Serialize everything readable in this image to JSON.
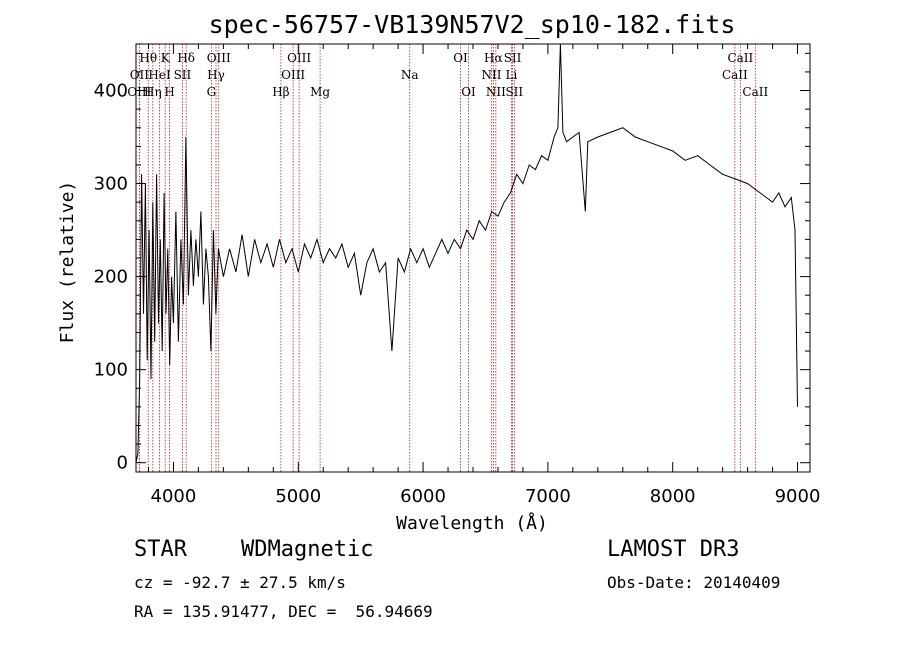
{
  "chart_data": {
    "type": "line",
    "title": "spec-56757-VB139N57V2_sp10-182.fits",
    "xlabel": "Wavelength (Å)",
    "ylabel": "Flux (relative)",
    "xlim": [
      3700,
      9100
    ],
    "ylim": [
      -10,
      450
    ],
    "x_ticks": [
      4000,
      5000,
      6000,
      7000,
      8000,
      9000
    ],
    "y_ticks": [
      0,
      100,
      200,
      300,
      400
    ],
    "line_color": "#000000",
    "marker_color": "#b22222",
    "series": [
      {
        "name": "spectrum",
        "points": [
          [
            3700,
            0
          ],
          [
            3715,
            10
          ],
          [
            3730,
            90
          ],
          [
            3745,
            310
          ],
          [
            3760,
            160
          ],
          [
            3775,
            300
          ],
          [
            3790,
            110
          ],
          [
            3805,
            250
          ],
          [
            3820,
            90
          ],
          [
            3835,
            280
          ],
          [
            3850,
            130
          ],
          [
            3865,
            310
          ],
          [
            3880,
            150
          ],
          [
            3895,
            240
          ],
          [
            3910,
            120
          ],
          [
            3925,
            290
          ],
          [
            3940,
            160
          ],
          [
            3955,
            230
          ],
          [
            3970,
            105
          ],
          [
            3985,
            200
          ],
          [
            4000,
            150
          ],
          [
            4020,
            270
          ],
          [
            4040,
            130
          ],
          [
            4060,
            240
          ],
          [
            4080,
            170
          ],
          [
            4100,
            350
          ],
          [
            4120,
            180
          ],
          [
            4140,
            250
          ],
          [
            4160,
            190
          ],
          [
            4180,
            240
          ],
          [
            4200,
            200
          ],
          [
            4220,
            270
          ],
          [
            4240,
            170
          ],
          [
            4260,
            230
          ],
          [
            4280,
            200
          ],
          [
            4300,
            120
          ],
          [
            4320,
            250
          ],
          [
            4340,
            160
          ],
          [
            4360,
            230
          ],
          [
            4400,
            200
          ],
          [
            4450,
            230
          ],
          [
            4500,
            205
          ],
          [
            4550,
            245
          ],
          [
            4600,
            200
          ],
          [
            4650,
            240
          ],
          [
            4700,
            215
          ],
          [
            4750,
            235
          ],
          [
            4800,
            210
          ],
          [
            4850,
            240
          ],
          [
            4900,
            215
          ],
          [
            4950,
            230
          ],
          [
            5000,
            205
          ],
          [
            5050,
            235
          ],
          [
            5100,
            220
          ],
          [
            5150,
            240
          ],
          [
            5200,
            215
          ],
          [
            5250,
            230
          ],
          [
            5300,
            220
          ],
          [
            5350,
            235
          ],
          [
            5400,
            210
          ],
          [
            5450,
            225
          ],
          [
            5500,
            180
          ],
          [
            5550,
            215
          ],
          [
            5600,
            230
          ],
          [
            5650,
            205
          ],
          [
            5700,
            215
          ],
          [
            5750,
            120
          ],
          [
            5800,
            220
          ],
          [
            5850,
            205
          ],
          [
            5900,
            230
          ],
          [
            5950,
            215
          ],
          [
            6000,
            230
          ],
          [
            6050,
            210
          ],
          [
            6100,
            225
          ],
          [
            6150,
            240
          ],
          [
            6200,
            225
          ],
          [
            6250,
            240
          ],
          [
            6300,
            230
          ],
          [
            6350,
            250
          ],
          [
            6400,
            240
          ],
          [
            6450,
            260
          ],
          [
            6500,
            250
          ],
          [
            6550,
            270
          ],
          [
            6600,
            265
          ],
          [
            6650,
            280
          ],
          [
            6700,
            290
          ],
          [
            6750,
            310
          ],
          [
            6800,
            300
          ],
          [
            6850,
            320
          ],
          [
            6900,
            315
          ],
          [
            6950,
            330
          ],
          [
            7000,
            325
          ],
          [
            7050,
            350
          ],
          [
            7080,
            360
          ],
          [
            7100,
            450
          ],
          [
            7120,
            355
          ],
          [
            7150,
            345
          ],
          [
            7200,
            350
          ],
          [
            7250,
            355
          ],
          [
            7300,
            270
          ],
          [
            7320,
            345
          ],
          [
            7400,
            350
          ],
          [
            7500,
            355
          ],
          [
            7600,
            360
          ],
          [
            7700,
            350
          ],
          [
            7800,
            345
          ],
          [
            7900,
            340
          ],
          [
            8000,
            335
          ],
          [
            8100,
            325
          ],
          [
            8200,
            330
          ],
          [
            8300,
            320
          ],
          [
            8400,
            310
          ],
          [
            8500,
            305
          ],
          [
            8600,
            300
          ],
          [
            8700,
            290
          ],
          [
            8800,
            280
          ],
          [
            8850,
            290
          ],
          [
            8900,
            275
          ],
          [
            8950,
            285
          ],
          [
            8980,
            250
          ],
          [
            9000,
            60
          ]
        ]
      }
    ],
    "spectral_lines": [
      {
        "label": "Hθ",
        "wavelength": 3798,
        "row": 1
      },
      {
        "label": "K",
        "wavelength": 3934,
        "row": 1
      },
      {
        "label": "Hδ",
        "wavelength": 4102,
        "row": 1
      },
      {
        "label": "OIII",
        "wavelength": 4363,
        "row": 1
      },
      {
        "label": "OIII",
        "wavelength": 5007,
        "row": 1
      },
      {
        "label": "OI",
        "wavelength": 6300,
        "row": 1
      },
      {
        "label": "Hα",
        "wavelength": 6563,
        "row": 1
      },
      {
        "label": "SII",
        "wavelength": 6717,
        "row": 1
      },
      {
        "label": "CaII",
        "wavelength": 8542,
        "row": 1
      },
      {
        "label": "OII",
        "wavelength": 3727,
        "row": 2
      },
      {
        "label": "HeI",
        "wavelength": 3889,
        "row": 2
      },
      {
        "label": "SII",
        "wavelength": 4072,
        "row": 2
      },
      {
        "label": "Hγ",
        "wavelength": 4341,
        "row": 2
      },
      {
        "label": "OIII",
        "wavelength": 4959,
        "row": 2
      },
      {
        "label": "Na",
        "wavelength": 5893,
        "row": 2
      },
      {
        "label": "NII",
        "wavelength": 6548,
        "row": 2
      },
      {
        "label": "Li",
        "wavelength": 6708,
        "row": 2
      },
      {
        "label": "CaII",
        "wavelength": 8498,
        "row": 2
      },
      {
        "label": "OIII",
        "wavelength": 3727,
        "row": 3
      },
      {
        "label": "Hη",
        "wavelength": 3835,
        "row": 3
      },
      {
        "label": "H",
        "wavelength": 3969,
        "row": 3
      },
      {
        "label": "G",
        "wavelength": 4304,
        "row": 3
      },
      {
        "label": "Hβ",
        "wavelength": 4861,
        "row": 3
      },
      {
        "label": "Mg",
        "wavelength": 5175,
        "row": 3
      },
      {
        "label": "OI",
        "wavelength": 6364,
        "row": 3
      },
      {
        "label": "NII",
        "wavelength": 6583,
        "row": 3
      },
      {
        "label": "SII",
        "wavelength": 6731,
        "row": 3
      },
      {
        "label": "CaII",
        "wavelength": 8662,
        "row": 3
      }
    ]
  },
  "info": {
    "object_class": "STAR",
    "subclass": "WDMagnetic",
    "survey": "LAMOST DR3",
    "redshift": "cz = -92.7 ± 27.5 km/s",
    "obs_date": "Obs-Date: 20140409",
    "coords": "RA = 135.91477, DEC =  56.94669"
  }
}
